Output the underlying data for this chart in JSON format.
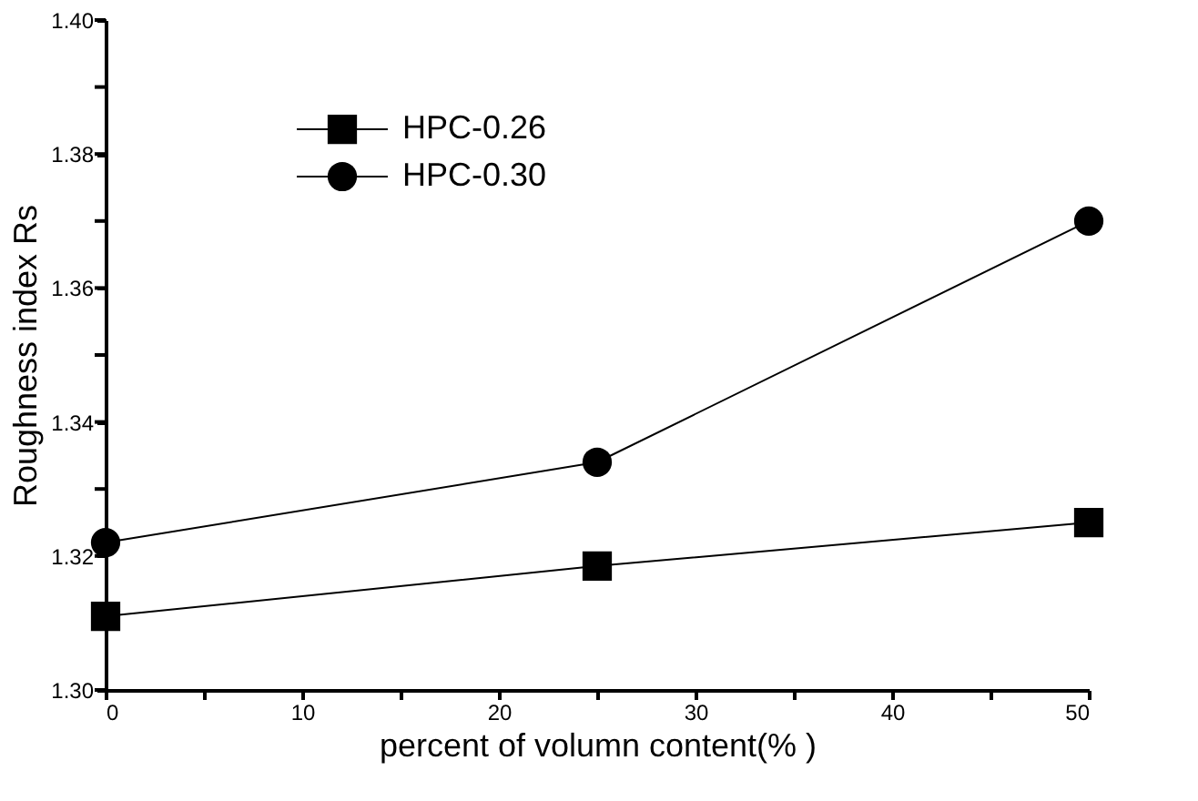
{
  "chart_data": {
    "type": "line",
    "xlabel": "percent of volumn content(% )",
    "ylabel": "Roughness index Rs",
    "x": [
      0,
      25,
      50
    ],
    "series": [
      {
        "name": "HPC-0.26",
        "color": "#000000",
        "marker": "square",
        "values": [
          1.311,
          1.3185,
          1.325
        ]
      },
      {
        "name": "HPC-0.30",
        "color": "#000000",
        "marker": "circle",
        "values": [
          1.322,
          1.334,
          1.37
        ]
      }
    ],
    "xlim": [
      0,
      50
    ],
    "ylim": [
      1.3,
      1.4
    ],
    "xticks": [
      0,
      {
        "value": 5,
        "label": null
      },
      10,
      {
        "value": 15,
        "label": null
      },
      20,
      {
        "value": 25,
        "label": null
      },
      30,
      {
        "value": 35,
        "label": null
      },
      40,
      {
        "value": 45,
        "label": null
      },
      50
    ],
    "yticks": [
      {
        "value": 1.3,
        "label": "1.30"
      },
      {
        "value": 1.31,
        "label": null
      },
      {
        "value": 1.32,
        "label": "1.32"
      },
      {
        "value": 1.33,
        "label": null
      },
      {
        "value": 1.34,
        "label": "1.34"
      },
      {
        "value": 1.35,
        "label": null
      },
      {
        "value": 1.36,
        "label": "1.36"
      },
      {
        "value": 1.37,
        "label": null
      },
      {
        "value": 1.38,
        "label": "1.38"
      },
      {
        "value": 1.39,
        "label": null
      },
      {
        "value": 1.4,
        "label": "1.40"
      }
    ],
    "grid": false,
    "legend": "top left",
    "line_style": "solid"
  }
}
